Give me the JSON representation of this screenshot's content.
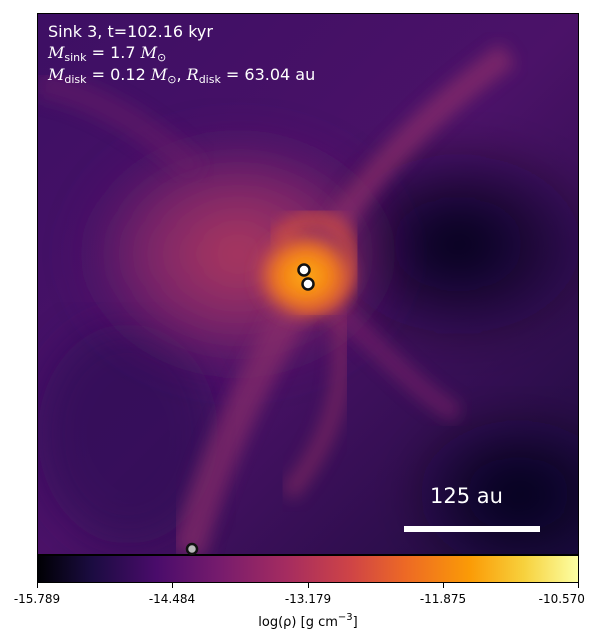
{
  "title": "Sink 3, t=102.16 kyr",
  "mass_sink": {
    "symbol": "M",
    "subscript": "sink",
    "value": "= 1.7",
    "unit": "M",
    "unit_subscript": "⊙"
  },
  "mass_disk": {
    "symbol": "M",
    "subscript": "disk",
    "value": "= 0.12",
    "unit": "M",
    "unit_subscript": "⊙",
    "sep": ",",
    "radius_symbol": "R",
    "radius_subscript": "disk",
    "radius_value": "= 63.04 au"
  },
  "scale_bar_label": "125 au",
  "colorbar": {
    "ticks": [
      "-15.789",
      "-14.484",
      "-13.179",
      "-11.875",
      "-10.570"
    ],
    "label_prefix": "log(ρ) [g cm",
    "label_exp": "−3",
    "label_suffix": "]",
    "colormap": "inferno"
  },
  "colors": {
    "peak": "#fb9b06",
    "background": "#1a0b3a"
  }
}
